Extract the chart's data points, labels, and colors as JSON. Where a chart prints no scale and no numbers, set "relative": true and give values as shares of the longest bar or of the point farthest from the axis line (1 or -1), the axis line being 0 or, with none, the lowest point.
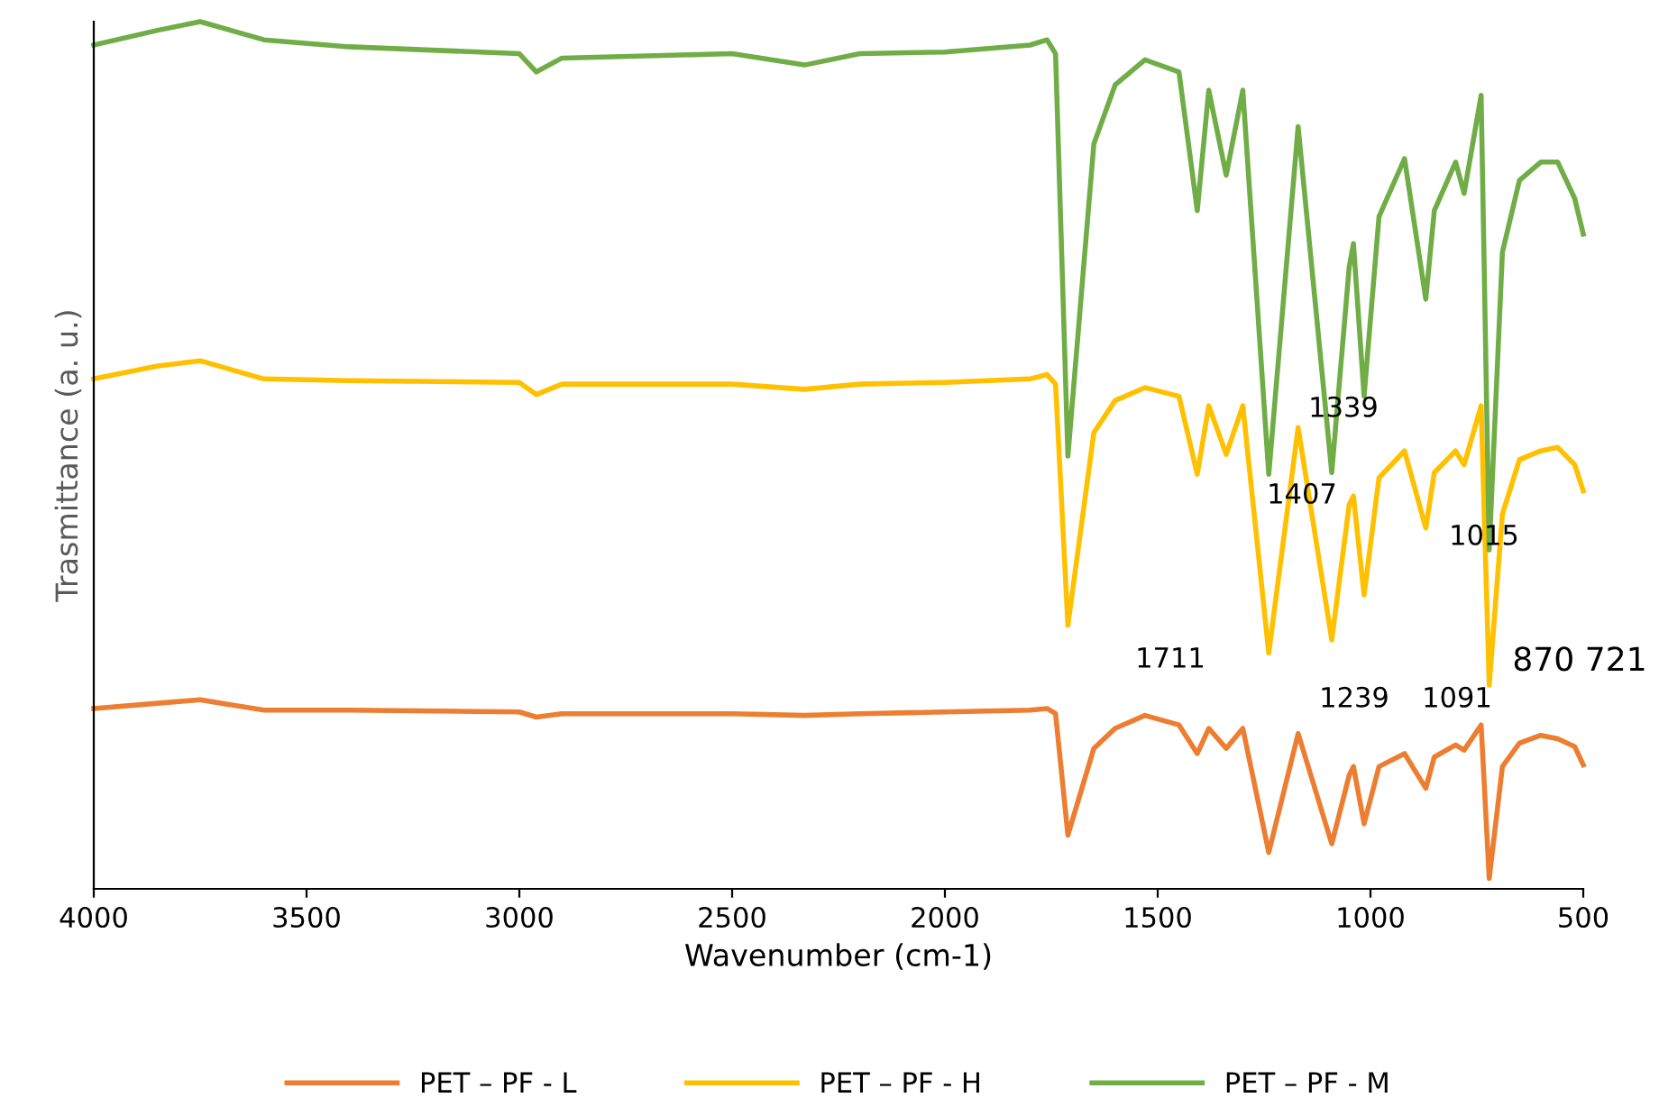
{
  "chart_data": {
    "type": "line",
    "relative": true,
    "xlabel": "Wavenumber (cm-1)",
    "ylabel": "Trasmittance (a. u.)",
    "xlim": [
      4000,
      500
    ],
    "xticks": [
      4000,
      3500,
      3000,
      2500,
      2000,
      1500,
      1000,
      500
    ],
    "grid": false,
    "legend": "bottom",
    "marker": "none",
    "line_style": "solid",
    "tick_labels": "x",
    "x": [
      4000,
      3850,
      3750,
      3600,
      3400,
      3000,
      2960,
      2900,
      2500,
      2330,
      2200,
      2000,
      1800,
      1760,
      1740,
      1711,
      1650,
      1600,
      1530,
      1450,
      1407,
      1380,
      1339,
      1300,
      1239,
      1170,
      1091,
      1050,
      1040,
      1015,
      980,
      920,
      870,
      850,
      800,
      780,
      740,
      721,
      690,
      650,
      600,
      560,
      520,
      500
    ],
    "series": [
      {
        "name": "PET – PF - L",
        "color": "#ed7d31",
        "values": [
          0.208,
          0.214,
          0.218,
          0.206,
          0.206,
          0.204,
          0.198,
          0.202,
          0.202,
          0.2,
          0.202,
          0.204,
          0.206,
          0.208,
          0.202,
          0.062,
          0.162,
          0.185,
          0.2,
          0.189,
          0.156,
          0.185,
          0.162,
          0.185,
          0.042,
          0.179,
          0.052,
          0.131,
          0.141,
          0.075,
          0.141,
          0.156,
          0.116,
          0.152,
          0.166,
          0.16,
          0.189,
          0.012,
          0.141,
          0.168,
          0.177,
          0.173,
          0.164,
          0.143
        ]
      },
      {
        "name": "PET – PF - H",
        "color": "#ffc000",
        "values": [
          0.588,
          0.603,
          0.609,
          0.588,
          0.586,
          0.584,
          0.57,
          0.582,
          0.582,
          0.576,
          0.582,
          0.584,
          0.588,
          0.593,
          0.582,
          0.304,
          0.526,
          0.563,
          0.578,
          0.568,
          0.478,
          0.557,
          0.501,
          0.557,
          0.272,
          0.532,
          0.287,
          0.443,
          0.453,
          0.339,
          0.474,
          0.505,
          0.416,
          0.48,
          0.505,
          0.489,
          0.557,
          0.235,
          0.432,
          0.495,
          0.505,
          0.509,
          0.489,
          0.459
        ]
      },
      {
        "name": "PET – PF - M",
        "color": "#70ad47",
        "values": [
          0.973,
          0.99,
          1.0,
          0.979,
          0.971,
          0.963,
          0.942,
          0.958,
          0.963,
          0.95,
          0.963,
          0.965,
          0.973,
          0.979,
          0.963,
          0.499,
          0.859,
          0.927,
          0.956,
          0.942,
          0.782,
          0.921,
          0.823,
          0.921,
          0.478,
          0.879,
          0.48,
          0.717,
          0.744,
          0.568,
          0.775,
          0.842,
          0.68,
          0.782,
          0.838,
          0.802,
          0.915,
          0.391,
          0.734,
          0.817,
          0.838,
          0.838,
          0.796,
          0.755
        ]
      }
    ],
    "annotations": [
      "1339",
      "1407",
      "1015",
      "1711",
      "1239",
      "1091",
      "870 721"
    ]
  }
}
